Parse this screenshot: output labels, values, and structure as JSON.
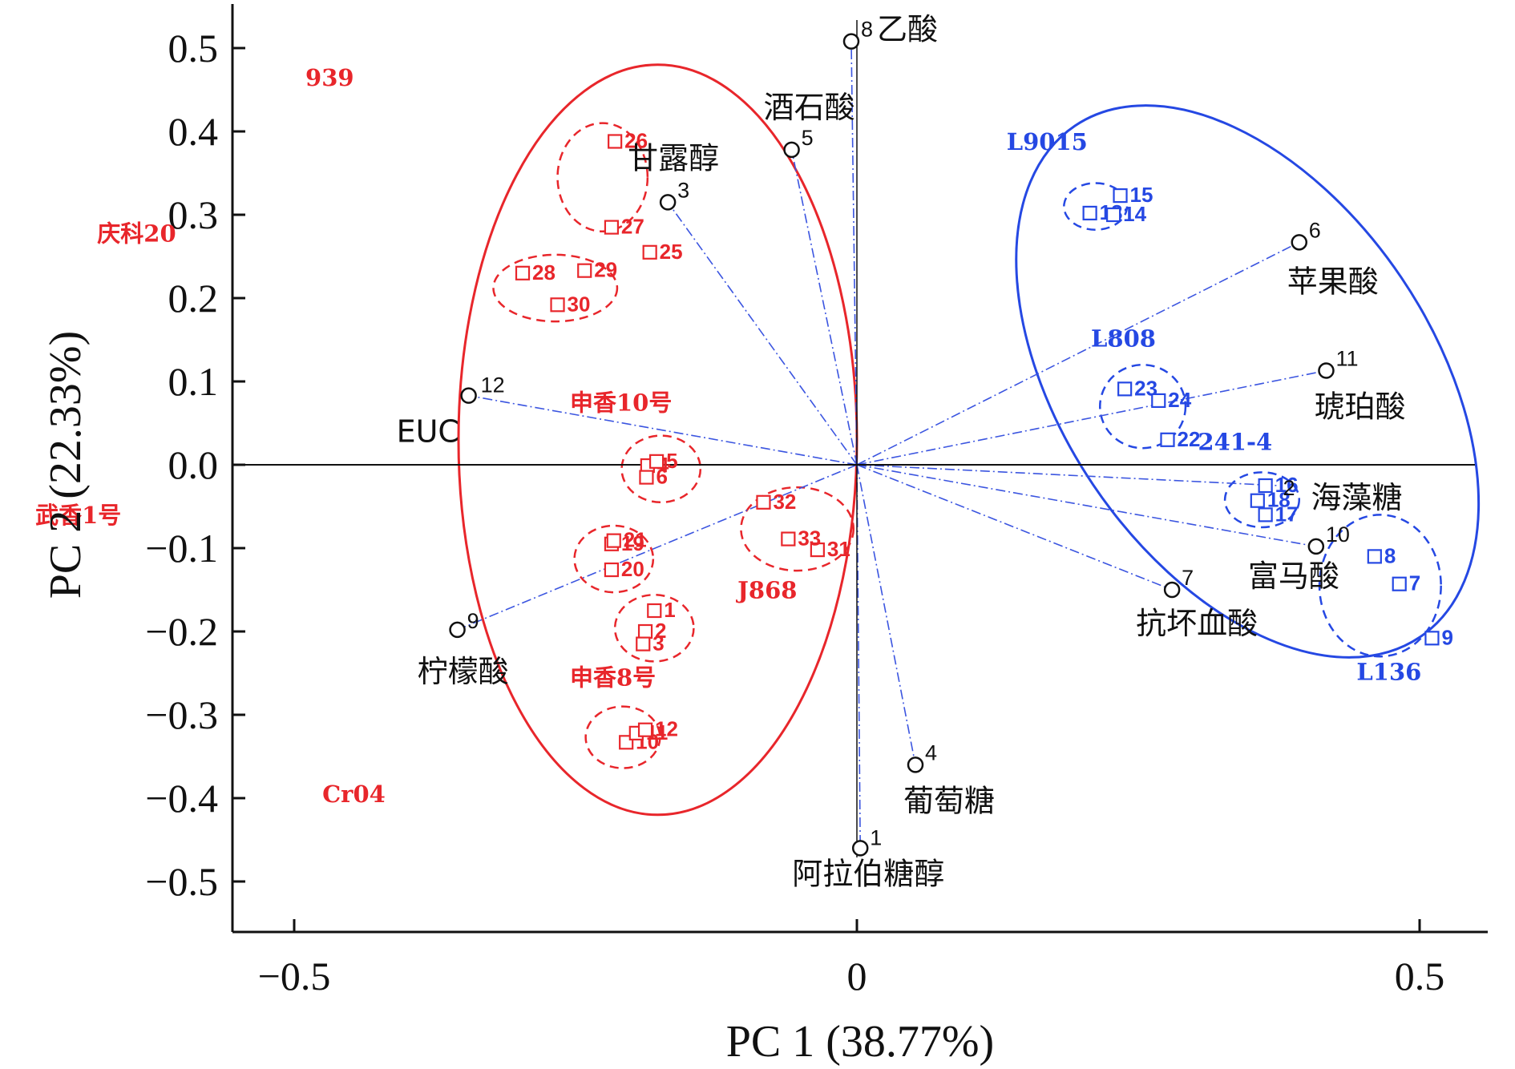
{
  "chart_data": {
    "type": "scatter",
    "subtype": "PCA biplot",
    "xlabel": "PC 1 (38.77%)",
    "ylabel": "PC 2 (22.33%)",
    "xlim": [
      -0.56,
      0.56
    ],
    "ylim": [
      -0.56,
      0.56
    ],
    "xticks": [
      {
        "value": -0.5,
        "label": "−0.5"
      },
      {
        "value": 0,
        "label": "0"
      },
      {
        "value": 0.5,
        "label": "0.5"
      }
    ],
    "yticks": [
      {
        "value": 0.5,
        "label": "0.5"
      },
      {
        "value": 0.4,
        "label": "0.4"
      },
      {
        "value": 0.3,
        "label": "0.3"
      },
      {
        "value": 0.2,
        "label": "0.2"
      },
      {
        "value": 0.1,
        "label": "0.1"
      },
      {
        "value": 0.0,
        "label": "0.0"
      },
      {
        "value": -0.1,
        "label": "−0.1"
      },
      {
        "value": -0.2,
        "label": "−0.2"
      },
      {
        "value": -0.3,
        "label": "−0.3"
      },
      {
        "value": -0.4,
        "label": "−0.4"
      },
      {
        "value": -0.5,
        "label": "−0.5"
      }
    ],
    "variables": [
      {
        "id": "1",
        "name": "阿拉伯糖醇",
        "x": 0.003,
        "y": -0.46
      },
      {
        "id": "3",
        "name": "甘露醇",
        "x": -0.168,
        "y": 0.315
      },
      {
        "id": "4",
        "name": "葡萄糖",
        "x": 0.052,
        "y": -0.36
      },
      {
        "id": "5",
        "name": "酒石酸",
        "x": -0.058,
        "y": 0.378
      },
      {
        "id": "6",
        "name": "苹果酸",
        "x": 0.393,
        "y": 0.267
      },
      {
        "id": "7",
        "name": "抗坏血酸",
        "x": 0.28,
        "y": -0.15
      },
      {
        "id": "8",
        "name": "乙酸",
        "x": -0.005,
        "y": 0.508
      },
      {
        "id": "9",
        "name": "柠檬酸",
        "x": -0.355,
        "y": -0.198
      },
      {
        "id": "11",
        "name": "琥珀酸",
        "x": 0.417,
        "y": 0.113
      },
      {
        "id": "12",
        "name": "EUC",
        "x": -0.345,
        "y": 0.083
      },
      {
        "id": "2",
        "name": "海藻糖",
        "x": 0.375,
        "y": -0.025
      },
      {
        "id": "10",
        "name": "富马酸",
        "x": 0.408,
        "y": -0.098
      }
    ],
    "samples": [
      {
        "id": "1",
        "x": -0.18,
        "y": -0.175,
        "group": "申香8号"
      },
      {
        "id": "2",
        "x": -0.188,
        "y": -0.2,
        "group": "申香8号"
      },
      {
        "id": "3",
        "x": -0.19,
        "y": -0.215,
        "group": "申香8号"
      },
      {
        "id": "4",
        "x": -0.186,
        "y": -0.001,
        "group": "申香10号"
      },
      {
        "id": "5",
        "x": -0.178,
        "y": 0.004,
        "group": "申香10号"
      },
      {
        "id": "6",
        "x": -0.187,
        "y": -0.015,
        "group": "申香10号"
      },
      {
        "id": "7",
        "x": 0.482,
        "y": -0.143,
        "group": "L136"
      },
      {
        "id": "8",
        "x": 0.46,
        "y": -0.11,
        "group": "L136"
      },
      {
        "id": "9",
        "x": 0.511,
        "y": -0.208,
        "group": "L136"
      },
      {
        "id": "10",
        "x": -0.205,
        "y": -0.333,
        "group": "Cr04"
      },
      {
        "id": "11",
        "x": -0.196,
        "y": -0.322,
        "group": "Cr04"
      },
      {
        "id": "12",
        "x": -0.188,
        "y": -0.318,
        "group": "Cr04"
      },
      {
        "id": "13",
        "x": 0.207,
        "y": 0.302,
        "group": "L9015"
      },
      {
        "id": "14",
        "x": 0.228,
        "y": 0.3,
        "group": "L9015"
      },
      {
        "id": "15",
        "x": 0.234,
        "y": 0.323,
        "group": "L9015"
      },
      {
        "id": "16",
        "x": 0.363,
        "y": -0.025,
        "group": "241-4"
      },
      {
        "id": "17",
        "x": 0.363,
        "y": -0.06,
        "group": "241-4"
      },
      {
        "id": "18",
        "x": 0.356,
        "y": -0.043,
        "group": "241-4"
      },
      {
        "id": "19",
        "x": -0.218,
        "y": -0.095,
        "group": "武香1号"
      },
      {
        "id": "20",
        "x": -0.218,
        "y": -0.126,
        "group": "武香1号"
      },
      {
        "id": "21",
        "x": -0.216,
        "y": -0.091,
        "group": "武香1号"
      },
      {
        "id": "22",
        "x": 0.276,
        "y": 0.03,
        "group": "L808"
      },
      {
        "id": "23",
        "x": 0.238,
        "y": 0.091,
        "group": "L808"
      },
      {
        "id": "24",
        "x": 0.268,
        "y": 0.077,
        "group": "L808"
      },
      {
        "id": "25",
        "x": -0.184,
        "y": 0.255,
        "group": "939"
      },
      {
        "id": "26",
        "x": -0.215,
        "y": 0.388,
        "group": "939"
      },
      {
        "id": "27",
        "x": -0.218,
        "y": 0.285,
        "group": "939"
      },
      {
        "id": "28",
        "x": -0.297,
        "y": 0.23,
        "group": "庆科20"
      },
      {
        "id": "29",
        "x": -0.242,
        "y": 0.233,
        "group": "庆科20"
      },
      {
        "id": "30",
        "x": -0.266,
        "y": 0.192,
        "group": "庆科20"
      },
      {
        "id": "31",
        "x": -0.035,
        "y": -0.102,
        "group": "J868"
      },
      {
        "id": "32",
        "x": -0.083,
        "y": -0.045,
        "group": "J868"
      },
      {
        "id": "33",
        "x": -0.061,
        "y": -0.089,
        "group": "J868"
      }
    ],
    "groups": [
      {
        "name": "939",
        "color": "#e8262b",
        "cx": -0.226,
        "cy": 0.345,
        "rx": 0.04,
        "ry": 0.065
      },
      {
        "name": "庆科20",
        "color": "#e8262b",
        "cx": -0.268,
        "cy": 0.212,
        "rx": 0.055,
        "ry": 0.04
      },
      {
        "name": "申香10号",
        "color": "#e8262b",
        "cx": -0.174,
        "cy": -0.005,
        "rx": 0.035,
        "ry": 0.04
      },
      {
        "name": "武香1号",
        "color": "#e8262b",
        "cx": -0.216,
        "cy": -0.113,
        "rx": 0.035,
        "ry": 0.04
      },
      {
        "name": "申香8号",
        "color": "#e8262b",
        "cx": -0.18,
        "cy": -0.196,
        "rx": 0.035,
        "ry": 0.04
      },
      {
        "name": "Cr04",
        "color": "#e8262b",
        "cx": -0.208,
        "cy": -0.327,
        "rx": 0.033,
        "ry": 0.037
      },
      {
        "name": "J868",
        "color": "#e8262b",
        "cx": -0.053,
        "cy": -0.077,
        "rx": 0.05,
        "ry": 0.05
      },
      {
        "name": "L9015",
        "color": "#2548e3",
        "cx": 0.212,
        "cy": 0.31,
        "rx": 0.028,
        "ry": 0.028
      },
      {
        "name": "L808",
        "color": "#2548e3",
        "cx": 0.254,
        "cy": 0.07,
        "rx": 0.038,
        "ry": 0.05
      },
      {
        "name": "241-4",
        "color": "#2548e3",
        "cx": 0.36,
        "cy": -0.042,
        "rx": 0.033,
        "ry": 0.033
      },
      {
        "name": "L136",
        "color": "#2548e3",
        "cx": 0.465,
        "cy": -0.145,
        "rx": 0.054,
        "ry": 0.085
      }
    ],
    "clusters": [
      {
        "color": "#e8262b",
        "cx": -0.177,
        "cy": 0.03,
        "rx": 0.177,
        "ry": 0.45,
        "angle": 0
      },
      {
        "color": "#2548e3",
        "cx": 0.347,
        "cy": 0.1,
        "rx": 0.165,
        "ry": 0.37,
        "angle": -34
      }
    ]
  }
}
